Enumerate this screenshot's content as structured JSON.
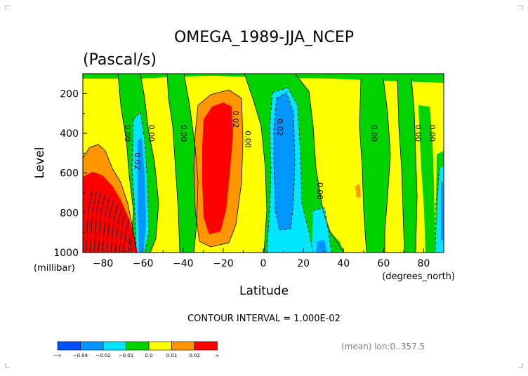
{
  "chart_data": {
    "type": "contour",
    "title": "OMEGA_1989-JJA_NCEP",
    "subtitle": "(Pascal/s)",
    "xlabel": "Latitude",
    "ylabel": "Level",
    "x_units": "(degrees_north)",
    "y_units": "(millibar)",
    "xlim": [
      -90,
      90
    ],
    "ylim": [
      1000,
      100
    ],
    "x_ticks": [
      -80,
      -60,
      -40,
      -20,
      0,
      20,
      40,
      60,
      80
    ],
    "y_ticks": [
      200,
      400,
      600,
      800,
      1000
    ],
    "contour_interval_text": "CONTOUR INTERVAL = 1.000E-02",
    "footnote": "(mean) lon:0..357.5",
    "contour_labels": [
      {
        "text": "0.00",
        "lat": -69,
        "lev": 400
      },
      {
        "text": "0.00",
        "lat": -57,
        "lev": 400
      },
      {
        "text": "0.00",
        "lat": -41,
        "lev": 400
      },
      {
        "text": "0.02",
        "lat": -64,
        "lev": 540
      },
      {
        "text": "0.02",
        "lat": -15,
        "lev": 330
      },
      {
        "text": "0.00",
        "lat": -9,
        "lev": 430
      },
      {
        "text": "0.02",
        "lat": 7,
        "lev": 370
      },
      {
        "text": "0.00",
        "lat": 27,
        "lev": 690
      },
      {
        "text": "0.00",
        "lat": 54,
        "lev": 400
      },
      {
        "text": "0.00",
        "lat": 76,
        "lev": 400
      },
      {
        "text": "0.00",
        "lat": 83,
        "lev": 400
      }
    ],
    "legend": {
      "levels": [
        "-∞",
        "-0.04",
        "-0.02",
        "-0.01",
        "0.0",
        "0.01",
        "0.02",
        "∞"
      ],
      "colors": [
        "#0050ff",
        "#0096ff",
        "#00e6ff",
        "#00d200",
        "#ffff00",
        "#ff9600",
        "#ff0000"
      ]
    },
    "regions": [
      {
        "name": "positive-high",
        "color": "#ff0000",
        "comment": "omega > 0.02 near -20 lat and -85 lat"
      },
      {
        "name": "negative-low",
        "color": "#0096ff",
        "comment": "omega < -0.02 near 10 lat"
      }
    ]
  }
}
